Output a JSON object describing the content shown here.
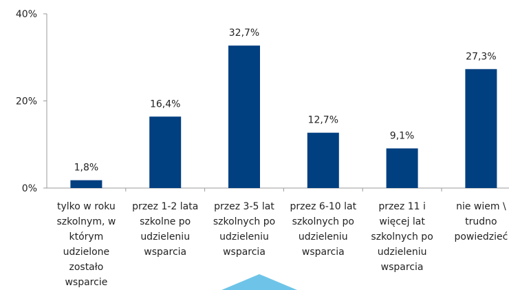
{
  "chart_data": {
    "type": "bar",
    "categories": [
      "tylko w roku\nszkolnym, w\nktórym\nudzielone\nzostało\nwsparcie",
      "przez 1-2 lata\nszkolne po\nudzieleniu\nwsparcia",
      "przez 3-5 lat\nszkolnych po\nudzieleniu\nwsparcia",
      "przez 6-10 lat\nszkolnych po\nudzieleniu\nwsparcia",
      "przez 11 i\nwięcej lat\nszkolnych po\nudzieleniu\nwsparcia",
      "nie wiem \\\ntrudno\npowiedzieć"
    ],
    "values": [
      1.8,
      16.4,
      32.7,
      12.7,
      9.1,
      27.3
    ],
    "value_labels": [
      "1,8%",
      "16,4%",
      "32,7%",
      "12,7%",
      "9,1%",
      "27,3%"
    ],
    "color": "#003f80",
    "ylim": [
      0,
      40
    ],
    "yticks": [
      {
        "value": 0,
        "label": "0%"
      },
      {
        "value": 20,
        "label": "20%"
      },
      {
        "value": 40,
        "label": "40%"
      }
    ]
  }
}
